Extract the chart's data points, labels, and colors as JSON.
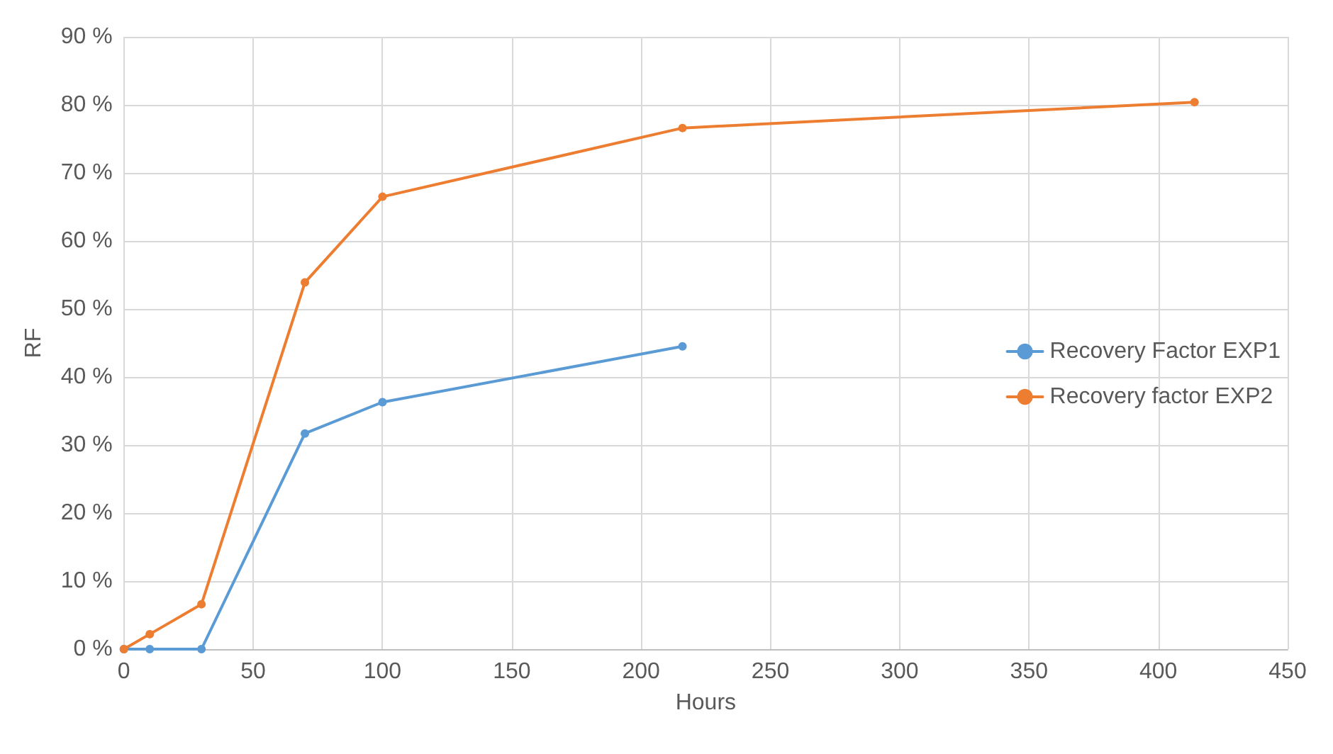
{
  "chart_data": {
    "type": "line",
    "xlabel": "Hours",
    "ylabel": "RF",
    "series": [
      {
        "name": "Recovery Factor EXP1",
        "color": "#5b9bd5",
        "x": [
          0,
          10,
          30,
          70,
          100,
          216
        ],
        "values": [
          0,
          0,
          0,
          31.7,
          36.3,
          44.5
        ]
      },
      {
        "name": "Recovery factor EXP2",
        "color": "#ed7d31",
        "x": [
          0,
          10,
          30,
          70,
          100,
          216,
          414
        ],
        "values": [
          0,
          2.2,
          6.6,
          53.9,
          66.5,
          76.6,
          80.4
        ]
      }
    ],
    "xlim": [
      0,
      450
    ],
    "xticks": [
      0,
      50,
      100,
      150,
      200,
      250,
      300,
      350,
      400,
      450
    ],
    "ylim": [
      0,
      90
    ],
    "yticks": [
      {
        "value": 0,
        "label": "0 %"
      },
      {
        "value": 10,
        "label": "10 %"
      },
      {
        "value": 20,
        "label": "20 %"
      },
      {
        "value": 30,
        "label": "30 %"
      },
      {
        "value": 40,
        "label": "40 %"
      },
      {
        "value": 50,
        "label": "50 %"
      },
      {
        "value": 60,
        "label": "60 %"
      },
      {
        "value": 70,
        "label": "70 %"
      },
      {
        "value": 80,
        "label": "80 %"
      },
      {
        "value": 90,
        "label": "90 %"
      }
    ],
    "grid": true,
    "legend": "right",
    "marker": "circle",
    "line_style": "solid"
  }
}
